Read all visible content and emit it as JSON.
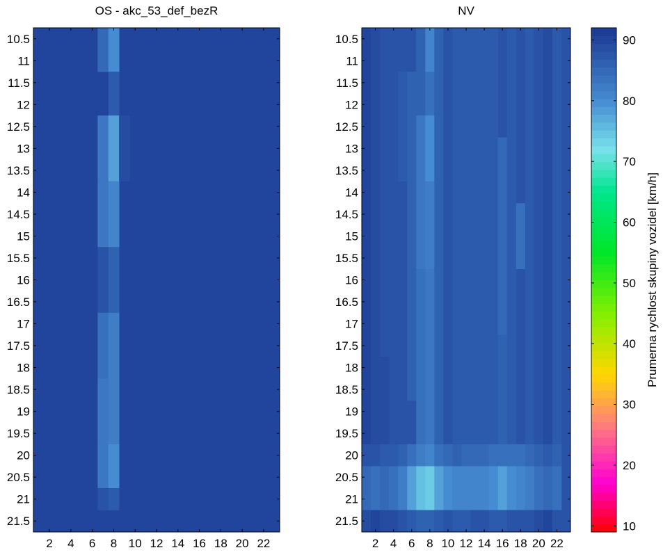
{
  "colors": {
    "colormap_top": "#1a3791",
    "frame": "#000000"
  },
  "chart_data": [
    {
      "type": "heatmap",
      "title": "OS - akc_53_def_bezR",
      "x": [
        1,
        2,
        3,
        4,
        5,
        6,
        7,
        8,
        9,
        10,
        11,
        12,
        13,
        14,
        15,
        16,
        17,
        18,
        19,
        20,
        21,
        22,
        23
      ],
      "x_ticks": [
        2,
        4,
        6,
        8,
        10,
        12,
        14,
        16,
        18,
        20,
        22
      ],
      "y": [
        10.5,
        11,
        11.5,
        12,
        12.5,
        13,
        13.5,
        14,
        14.5,
        15,
        15.5,
        16,
        16.5,
        17,
        17.5,
        18,
        18.5,
        19,
        19.5,
        20,
        20.5,
        21,
        21.5,
        22
      ],
      "y_ticks": [
        10.5,
        11,
        11.5,
        12,
        12.5,
        13,
        13.5,
        14,
        14.5,
        15,
        15.5,
        16,
        16.5,
        17,
        17.5,
        18,
        18.5,
        19,
        19.5,
        20,
        20.5,
        21,
        21.5
      ],
      "y_reversed": true,
      "default_value": 90,
      "cells": [
        {
          "x": 7,
          "y0": 10.5,
          "y1": 11.5,
          "v": 85
        },
        {
          "x": 8,
          "y0": 10.5,
          "y1": 11.5,
          "v": 80
        },
        {
          "x": 8,
          "y0": 11.5,
          "y1": 12.5,
          "v": 87
        },
        {
          "x": 7,
          "y0": 12.5,
          "y1": 14.0,
          "v": 83
        },
        {
          "x": 8,
          "y0": 12.5,
          "y1": 14.0,
          "v": 78
        },
        {
          "x": 9,
          "y0": 12.5,
          "y1": 14.0,
          "v": 89
        },
        {
          "x": 7,
          "y0": 14.0,
          "y1": 15.5,
          "v": 83
        },
        {
          "x": 8,
          "y0": 14.0,
          "y1": 15.5,
          "v": 81
        },
        {
          "x": 7,
          "y0": 15.5,
          "y1": 17.0,
          "v": 88
        },
        {
          "x": 8,
          "y0": 15.5,
          "y1": 17.0,
          "v": 86
        },
        {
          "x": 7,
          "y0": 17.0,
          "y1": 18.5,
          "v": 84
        },
        {
          "x": 8,
          "y0": 17.0,
          "y1": 18.5,
          "v": 82
        },
        {
          "x": 7,
          "y0": 18.5,
          "y1": 20.0,
          "v": 83
        },
        {
          "x": 8,
          "y0": 18.5,
          "y1": 20.0,
          "v": 82
        },
        {
          "x": 7,
          "y0": 20.0,
          "y1": 21.0,
          "v": 83
        },
        {
          "x": 8,
          "y0": 20.0,
          "y1": 21.0,
          "v": 80
        },
        {
          "x": 7,
          "y0": 21.0,
          "y1": 21.5,
          "v": 88
        },
        {
          "x": 8,
          "y0": 21.0,
          "y1": 21.5,
          "v": 87
        }
      ]
    },
    {
      "type": "heatmap",
      "title": "NV",
      "x": [
        1,
        2,
        3,
        4,
        5,
        6,
        7,
        8,
        9,
        10,
        11,
        12,
        13,
        14,
        15,
        16,
        17,
        18,
        19,
        20,
        21,
        22,
        23
      ],
      "x_ticks": [
        2,
        4,
        6,
        8,
        10,
        12,
        14,
        16,
        18,
        20,
        22
      ],
      "y": [
        10.5,
        11,
        11.5,
        12,
        12.5,
        13,
        13.5,
        14,
        14.5,
        15,
        15.5,
        16,
        16.5,
        17,
        17.5,
        18,
        18.5,
        19,
        19.5,
        20,
        20.5,
        21,
        21.5,
        22
      ],
      "y_ticks": [
        10.5,
        11,
        11.5,
        12,
        12.5,
        13,
        13.5,
        14,
        14.5,
        15,
        15.5,
        16,
        16.5,
        17,
        17.5,
        18,
        18.5,
        19,
        19.5,
        20,
        20.5,
        21,
        21.5
      ],
      "y_reversed": true,
      "default_value": 88,
      "cells": [
        {
          "x": 1,
          "y0": 10.5,
          "y1": 20.0,
          "v": 90
        },
        {
          "x": 2,
          "y0": 10.5,
          "y1": 20.0,
          "v": 89
        },
        {
          "x": 3,
          "y0": 18.0,
          "y1": 20.0,
          "v": 89
        },
        {
          "x": 5,
          "y0": 11.5,
          "y1": 14.0,
          "v": 87
        },
        {
          "x": 6,
          "y0": 11.5,
          "y1": 19.0,
          "v": 86
        },
        {
          "x": 7,
          "y0": 10.5,
          "y1": 12.5,
          "v": 86
        },
        {
          "x": 7,
          "y0": 12.5,
          "y1": 16.0,
          "v": 83
        },
        {
          "x": 7,
          "y0": 16.0,
          "y1": 20.0,
          "v": 84
        },
        {
          "x": 8,
          "y0": 10.5,
          "y1": 11.5,
          "v": 81
        },
        {
          "x": 8,
          "y0": 11.5,
          "y1": 12.5,
          "v": 84
        },
        {
          "x": 8,
          "y0": 12.5,
          "y1": 14.0,
          "v": 80
        },
        {
          "x": 8,
          "y0": 14.0,
          "y1": 16.0,
          "v": 82
        },
        {
          "x": 8,
          "y0": 16.0,
          "y1": 20.0,
          "v": 83
        },
        {
          "x": 9,
          "y0": 10.5,
          "y1": 20.0,
          "v": 86
        },
        {
          "x": 10,
          "y0": 10.5,
          "y1": 20.0,
          "v": 88
        },
        {
          "x": 11,
          "y0": 10.5,
          "y1": 20.0,
          "v": 87
        },
        {
          "x": 12,
          "y0": 10.5,
          "y1": 20.0,
          "v": 87
        },
        {
          "x": 13,
          "y0": 10.5,
          "y1": 20.0,
          "v": 87
        },
        {
          "x": 14,
          "y0": 10.5,
          "y1": 20.0,
          "v": 87
        },
        {
          "x": 15,
          "y0": 10.5,
          "y1": 20.0,
          "v": 87
        },
        {
          "x": 16,
          "y0": 13.0,
          "y1": 17.5,
          "v": 85
        },
        {
          "x": 16,
          "y0": 17.5,
          "y1": 20.0,
          "v": 86
        },
        {
          "x": 17,
          "y0": 10.5,
          "y1": 20.0,
          "v": 87
        },
        {
          "x": 18,
          "y0": 14.5,
          "y1": 16.0,
          "v": 84
        },
        {
          "x": 19,
          "y0": 10.5,
          "y1": 20.0,
          "v": 87
        },
        {
          "x": 20,
          "y0": 10.5,
          "y1": 20.0,
          "v": 88
        },
        {
          "x": 21,
          "y0": 10.5,
          "y1": 20.0,
          "v": 89
        },
        {
          "x": 22,
          "y0": 10.5,
          "y1": 20.0,
          "v": 87
        },
        {
          "x": 1,
          "y0": 20.0,
          "y1": 20.5,
          "v": 88
        },
        {
          "x": 2,
          "y0": 20.0,
          "y1": 20.5,
          "v": 88
        },
        {
          "x": 3,
          "y0": 20.0,
          "y1": 20.5,
          "v": 87
        },
        {
          "x": 4,
          "y0": 20.0,
          "y1": 20.5,
          "v": 87
        },
        {
          "x": 5,
          "y0": 20.0,
          "y1": 20.5,
          "v": 86
        },
        {
          "x": 6,
          "y0": 20.0,
          "y1": 20.5,
          "v": 84
        },
        {
          "x": 7,
          "y0": 20.0,
          "y1": 20.5,
          "v": 82
        },
        {
          "x": 8,
          "y0": 20.0,
          "y1": 20.5,
          "v": 81
        },
        {
          "x": 9,
          "y0": 20.0,
          "y1": 20.5,
          "v": 84
        },
        {
          "x": 10,
          "y0": 20.0,
          "y1": 20.5,
          "v": 85
        },
        {
          "x": 11,
          "y0": 20.0,
          "y1": 20.5,
          "v": 86
        },
        {
          "x": 12,
          "y0": 20.0,
          "y1": 20.5,
          "v": 85
        },
        {
          "x": 13,
          "y0": 20.0,
          "y1": 20.5,
          "v": 85
        },
        {
          "x": 14,
          "y0": 20.0,
          "y1": 20.5,
          "v": 85
        },
        {
          "x": 15,
          "y0": 20.0,
          "y1": 20.5,
          "v": 84
        },
        {
          "x": 16,
          "y0": 20.0,
          "y1": 20.5,
          "v": 84
        },
        {
          "x": 17,
          "y0": 20.0,
          "y1": 20.5,
          "v": 84
        },
        {
          "x": 18,
          "y0": 20.0,
          "y1": 20.5,
          "v": 84
        },
        {
          "x": 19,
          "y0": 20.0,
          "y1": 20.5,
          "v": 85
        },
        {
          "x": 20,
          "y0": 20.0,
          "y1": 20.5,
          "v": 86
        },
        {
          "x": 21,
          "y0": 20.0,
          "y1": 20.5,
          "v": 87
        },
        {
          "x": 22,
          "y0": 20.0,
          "y1": 20.5,
          "v": 86
        },
        {
          "x": 1,
          "y0": 20.5,
          "y1": 21.5,
          "v": 85
        },
        {
          "x": 2,
          "y0": 20.5,
          "y1": 21.5,
          "v": 84
        },
        {
          "x": 3,
          "y0": 20.5,
          "y1": 21.5,
          "v": 85
        },
        {
          "x": 4,
          "y0": 20.5,
          "y1": 21.5,
          "v": 84
        },
        {
          "x": 5,
          "y0": 20.5,
          "y1": 21.5,
          "v": 82
        },
        {
          "x": 6,
          "y0": 20.5,
          "y1": 21.5,
          "v": 78
        },
        {
          "x": 7,
          "y0": 20.5,
          "y1": 21.5,
          "v": 75
        },
        {
          "x": 8,
          "y0": 20.5,
          "y1": 21.5,
          "v": 74
        },
        {
          "x": 9,
          "y0": 20.5,
          "y1": 21.5,
          "v": 78
        },
        {
          "x": 10,
          "y0": 20.5,
          "y1": 21.5,
          "v": 80
        },
        {
          "x": 11,
          "y0": 20.5,
          "y1": 21.5,
          "v": 81
        },
        {
          "x": 12,
          "y0": 20.5,
          "y1": 21.5,
          "v": 81
        },
        {
          "x": 13,
          "y0": 20.5,
          "y1": 21.5,
          "v": 81
        },
        {
          "x": 14,
          "y0": 20.5,
          "y1": 21.5,
          "v": 81
        },
        {
          "x": 15,
          "y0": 20.5,
          "y1": 21.5,
          "v": 80
        },
        {
          "x": 16,
          "y0": 20.5,
          "y1": 21.5,
          "v": 78
        },
        {
          "x": 17,
          "y0": 20.5,
          "y1": 21.5,
          "v": 80
        },
        {
          "x": 18,
          "y0": 20.5,
          "y1": 21.5,
          "v": 81
        },
        {
          "x": 19,
          "y0": 20.5,
          "y1": 21.5,
          "v": 82
        },
        {
          "x": 20,
          "y0": 20.5,
          "y1": 21.5,
          "v": 84
        },
        {
          "x": 21,
          "y0": 20.5,
          "y1": 21.5,
          "v": 85
        },
        {
          "x": 22,
          "y0": 20.5,
          "y1": 21.5,
          "v": 84
        },
        {
          "x": 1,
          "y0": 21.5,
          "y1": 22.0,
          "v": 89
        },
        {
          "x": 2,
          "y0": 21.5,
          "y1": 22.0,
          "v": 90
        },
        {
          "x": 3,
          "y0": 21.5,
          "y1": 22.0,
          "v": 89
        },
        {
          "x": 4,
          "y0": 21.5,
          "y1": 22.0,
          "v": 89
        },
        {
          "x": 5,
          "y0": 21.5,
          "y1": 22.0,
          "v": 88
        },
        {
          "x": 6,
          "y0": 21.5,
          "y1": 22.0,
          "v": 87
        },
        {
          "x": 7,
          "y0": 21.5,
          "y1": 22.0,
          "v": 86
        },
        {
          "x": 8,
          "y0": 21.5,
          "y1": 22.0,
          "v": 86
        },
        {
          "x": 9,
          "y0": 21.5,
          "y1": 22.0,
          "v": 87
        },
        {
          "x": 10,
          "y0": 21.5,
          "y1": 22.0,
          "v": 88
        },
        {
          "x": 11,
          "y0": 21.5,
          "y1": 22.0,
          "v": 87
        },
        {
          "x": 12,
          "y0": 21.5,
          "y1": 22.0,
          "v": 87
        },
        {
          "x": 13,
          "y0": 21.5,
          "y1": 22.0,
          "v": 88
        },
        {
          "x": 14,
          "y0": 21.5,
          "y1": 22.0,
          "v": 88
        },
        {
          "x": 15,
          "y0": 21.5,
          "y1": 22.0,
          "v": 87
        },
        {
          "x": 16,
          "y0": 21.5,
          "y1": 22.0,
          "v": 87
        },
        {
          "x": 17,
          "y0": 21.5,
          "y1": 22.0,
          "v": 88
        },
        {
          "x": 18,
          "y0": 21.5,
          "y1": 22.0,
          "v": 88
        },
        {
          "x": 19,
          "y0": 21.5,
          "y1": 22.0,
          "v": 88
        },
        {
          "x": 20,
          "y0": 21.5,
          "y1": 22.0,
          "v": 89
        },
        {
          "x": 21,
          "y0": 21.5,
          "y1": 22.0,
          "v": 90
        },
        {
          "x": 22,
          "y0": 21.5,
          "y1": 22.0,
          "v": 88
        }
      ]
    }
  ],
  "colorbar": {
    "label": "Prumerna rychlost skupiny vozidel [km/h]",
    "min": 9,
    "max": 92,
    "ticks": [
      10,
      20,
      30,
      40,
      50,
      60,
      70,
      80,
      90
    ]
  }
}
